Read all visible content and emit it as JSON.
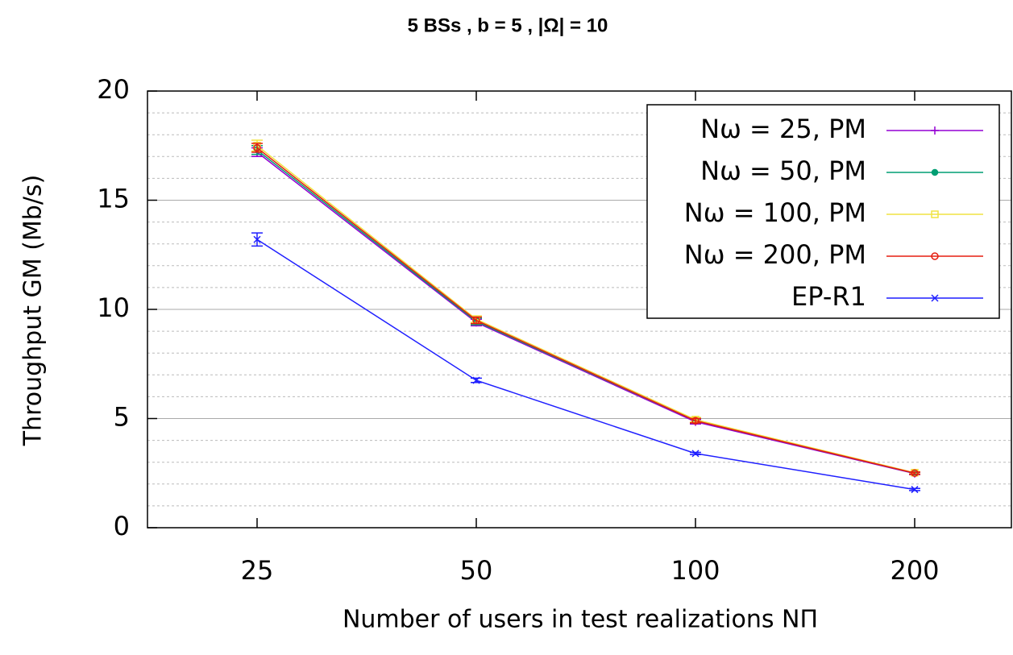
{
  "chart_data": {
    "type": "line",
    "title": "5 BSs  ,  b = 5  ,  |Ω| = 10",
    "x_label": "Number of users in test realizations NΠ",
    "y_label": "Throughput GM (Mb/s)",
    "categories": [
      "25",
      "50",
      "100",
      "200"
    ],
    "ylim": [
      0,
      20
    ],
    "yticks": [
      0,
      5,
      10,
      15,
      20
    ],
    "minor_yticks": [
      1,
      2,
      3,
      4,
      6,
      7,
      8,
      9,
      11,
      12,
      13,
      14,
      16,
      17,
      18,
      19
    ],
    "grid": true,
    "legend": "upper right",
    "series": [
      {
        "name": "Nω = 25, PM",
        "color": "#9400d3",
        "marker": "plus",
        "values": [
          17.2,
          9.4,
          4.85,
          2.48
        ],
        "errors": [
          0.2,
          0.15,
          0.1,
          0.05
        ]
      },
      {
        "name": "Nω = 50, PM",
        "color": "#009e73",
        "marker": "dot",
        "values": [
          17.3,
          9.45,
          4.9,
          2.5
        ],
        "errors": [
          0.2,
          0.15,
          0.1,
          0.05
        ]
      },
      {
        "name": "Nω = 100, PM",
        "color": "#f0e442",
        "marker": "square",
        "values": [
          17.5,
          9.55,
          4.95,
          2.52
        ],
        "errors": [
          0.25,
          0.15,
          0.1,
          0.05
        ]
      },
      {
        "name": "Nω = 200, PM",
        "color": "#e51e10",
        "marker": "circle",
        "values": [
          17.4,
          9.5,
          4.9,
          2.5
        ],
        "errors": [
          0.2,
          0.15,
          0.1,
          0.05
        ]
      },
      {
        "name": "EP-R1",
        "color": "#1f1fff",
        "marker": "cross",
        "values": [
          13.2,
          6.75,
          3.4,
          1.75
        ],
        "errors": [
          0.3,
          0.1,
          0.05,
          0.05
        ]
      }
    ]
  }
}
